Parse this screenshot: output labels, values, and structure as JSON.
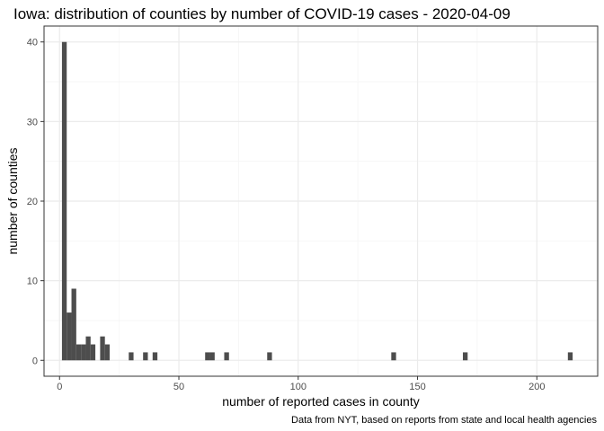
{
  "chart_data": {
    "type": "bar",
    "title": "Iowa: distribution of counties by number of COVID-19 cases - 2020-04-09",
    "xlabel": "number of reported cases in county",
    "ylabel": "number of counties",
    "caption": "Data from NYT, based on reports from state and local health agencies",
    "x_ticks": [
      0,
      50,
      100,
      150,
      200
    ],
    "y_ticks": [
      0,
      10,
      20,
      30,
      40
    ],
    "xlim": [
      -6.5,
      225.5
    ],
    "ylim": [
      -2,
      42
    ],
    "bin_width": 2,
    "grid": true,
    "bins": [
      {
        "x": 2,
        "count": 40
      },
      {
        "x": 4,
        "count": 6
      },
      {
        "x": 6,
        "count": 9
      },
      {
        "x": 8,
        "count": 2
      },
      {
        "x": 10,
        "count": 2
      },
      {
        "x": 12,
        "count": 3
      },
      {
        "x": 14,
        "count": 2
      },
      {
        "x": 18,
        "count": 3
      },
      {
        "x": 20,
        "count": 2
      },
      {
        "x": 30,
        "count": 1
      },
      {
        "x": 36,
        "count": 1
      },
      {
        "x": 40,
        "count": 1
      },
      {
        "x": 62,
        "count": 1
      },
      {
        "x": 64,
        "count": 1
      },
      {
        "x": 70,
        "count": 1
      },
      {
        "x": 88,
        "count": 1
      },
      {
        "x": 140,
        "count": 1
      },
      {
        "x": 170,
        "count": 1
      },
      {
        "x": 214,
        "count": 1
      }
    ]
  },
  "colors": {
    "bar": "#4d4d4d",
    "panel_border": "#333333",
    "grid_major": "#ebebeb",
    "grid_minor": "#f5f5f5",
    "text": "#000000",
    "tick_text": "#4d4d4d"
  }
}
